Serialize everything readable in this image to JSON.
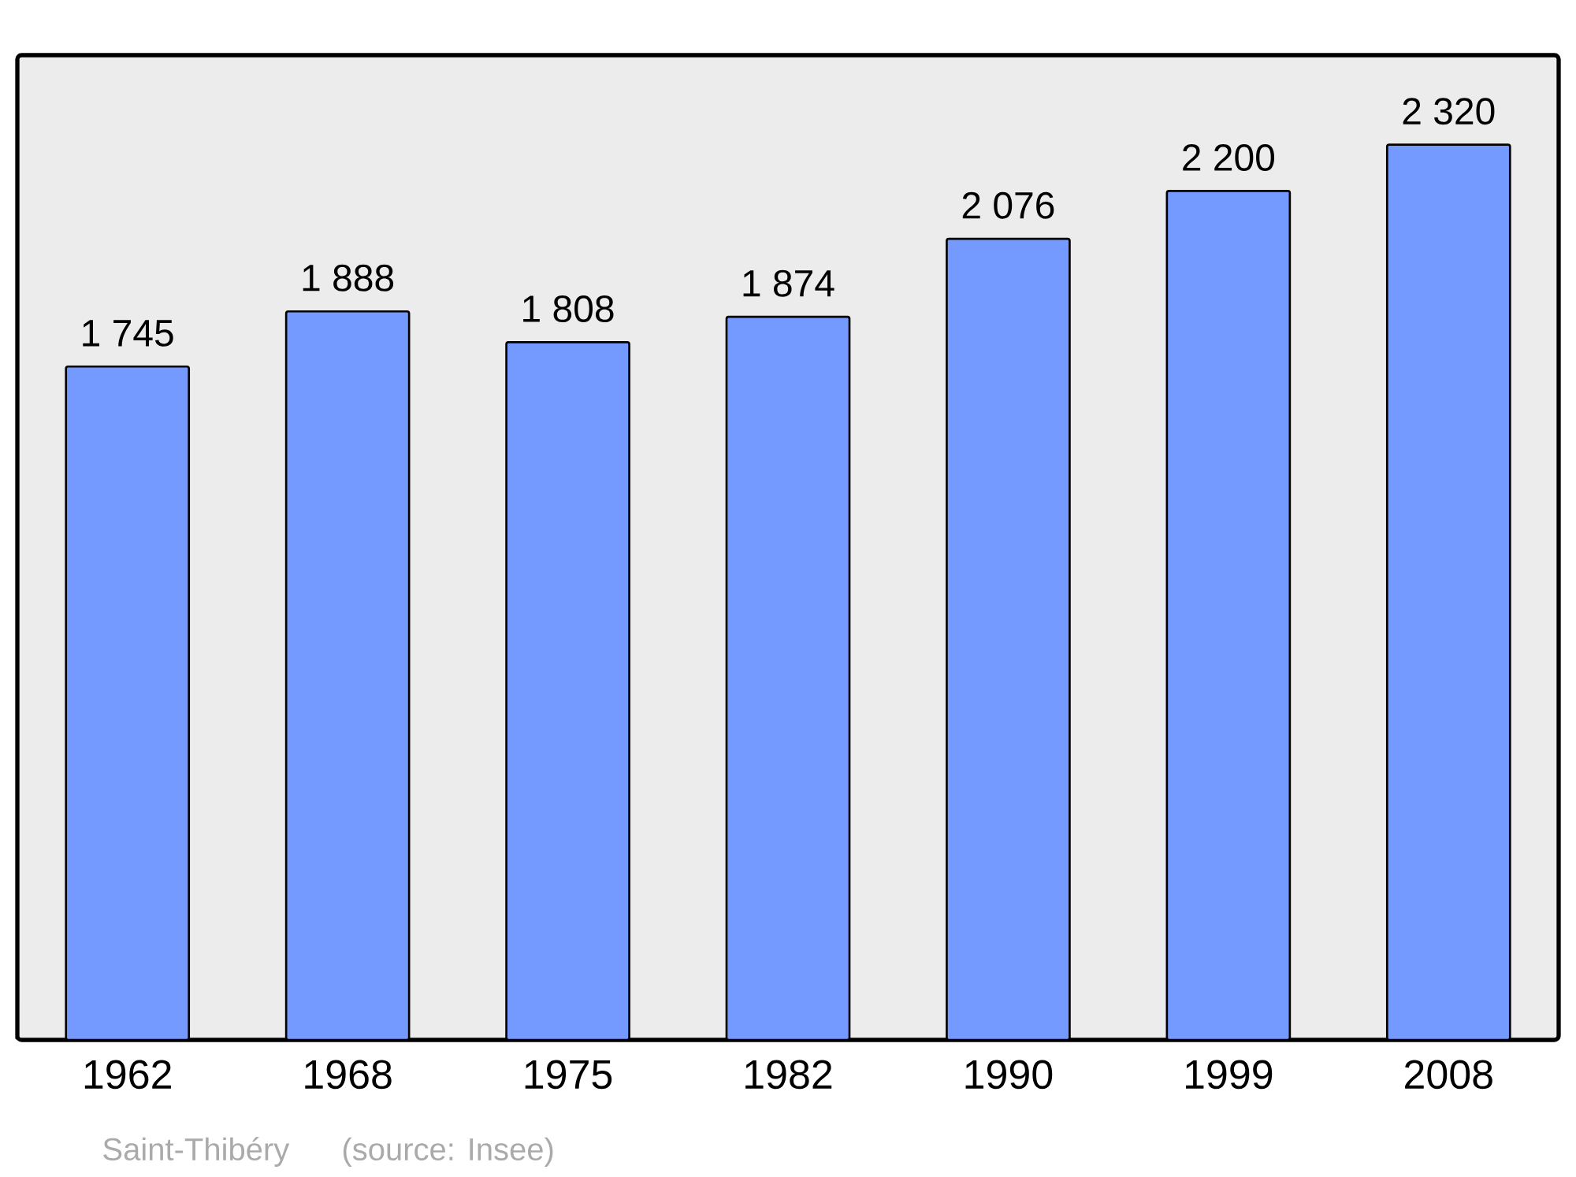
{
  "chart_data": {
    "type": "bar",
    "categories": [
      "1962",
      "1968",
      "1975",
      "1982",
      "1990",
      "1999",
      "2008"
    ],
    "values": [
      1745,
      1888,
      1808,
      1874,
      2076,
      2200,
      2320
    ],
    "value_labels": [
      "1 745",
      "1 888",
      "1 808",
      "1 874",
      "2 076",
      "2 200",
      "2 320"
    ],
    "color": "#7499ff",
    "annotations": [
      "Saint-Thibéry",
      "(source: Insee)"
    ]
  }
}
